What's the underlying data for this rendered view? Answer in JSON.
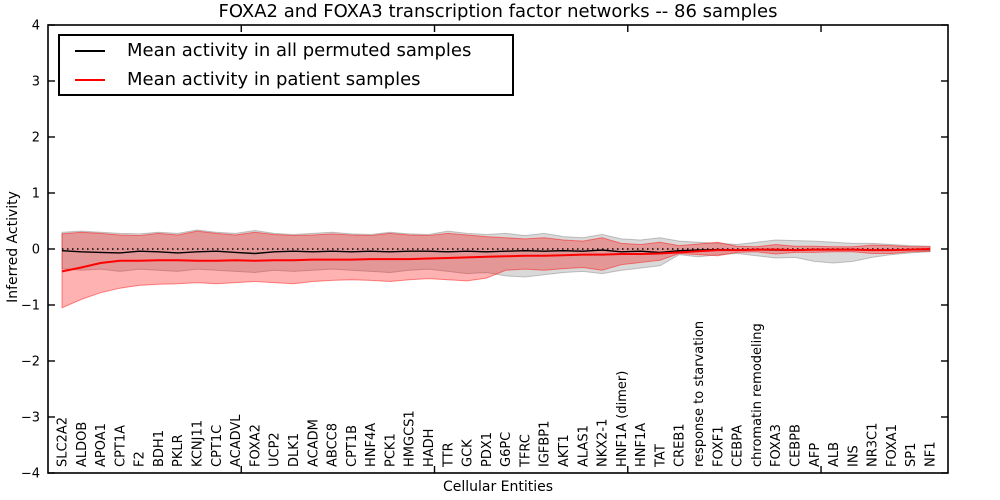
{
  "chart_data": {
    "type": "line",
    "title": "FOXA2 and FOXA3 transcription factor networks -- 86 samples",
    "xlabel": "Cellular Entities",
    "ylabel": "Inferred Activity",
    "ylim": [
      -4,
      4
    ],
    "yticks": [
      -4,
      -3,
      -2,
      -1,
      0,
      1,
      2,
      3,
      4
    ],
    "ytick_labels": [
      "−4",
      "−3",
      "−2",
      "−1",
      "0",
      "1",
      "2",
      "3",
      "4"
    ],
    "grid": false,
    "legend_position": "upper-left",
    "legend": [
      {
        "label": "Mean activity in all permuted samples",
        "color": "#000000"
      },
      {
        "label": "Mean activity in patient samples",
        "color": "#ff0000"
      }
    ],
    "categories": [
      "SLC2A2",
      "ALDOB",
      "APOA1",
      "CPT1A",
      "F2",
      "BDH1",
      "PKLR",
      "KCNJ11",
      "CPT1C",
      "ACADVL",
      "FOXA2",
      "UCP2",
      "DLK1",
      "ACADM",
      "ABCC8",
      "CPT1B",
      "HNF4A",
      "PCK1",
      "HMGCS1",
      "HADH",
      "TTR",
      "GCK",
      "PDX1",
      "G6PC",
      "TFRC",
      "IGFBP1",
      "AKT1",
      "ALAS1",
      "NKX2-1",
      "HNF1A (dimer)",
      "HNF1A",
      "TAT",
      "CREB1",
      "response to starvation",
      "FOXF1",
      "CEBPA",
      "chromatin remodeling",
      "FOXA3",
      "CEBPB",
      "AFP",
      "ALB",
      "INS",
      "NR3C1",
      "FOXA1",
      "SP1",
      "NF1"
    ],
    "series": [
      {
        "name": "Mean activity in all permuted samples",
        "color": "#000000",
        "line_width": 1.4,
        "values": [
          -0.03,
          -0.05,
          -0.06,
          -0.07,
          -0.04,
          -0.05,
          -0.07,
          -0.05,
          -0.04,
          -0.06,
          -0.08,
          -0.05,
          -0.04,
          -0.05,
          -0.04,
          -0.05,
          -0.04,
          -0.05,
          -0.04,
          -0.04,
          -0.05,
          -0.04,
          -0.05,
          -0.04,
          -0.03,
          -0.04,
          -0.03,
          -0.04,
          -0.02,
          -0.05,
          -0.04,
          -0.06,
          -0.03,
          -0.02,
          -0.01,
          -0.02,
          -0.01,
          -0.02,
          -0.02,
          -0.01,
          -0.01,
          -0.01,
          -0.02,
          -0.02,
          -0.01,
          -0.01
        ]
      },
      {
        "name": "Mean activity in patient samples",
        "color": "#ff0000",
        "line_width": 2,
        "values": [
          -0.4,
          -0.33,
          -0.25,
          -0.21,
          -0.21,
          -0.2,
          -0.2,
          -0.21,
          -0.21,
          -0.2,
          -0.21,
          -0.2,
          -0.2,
          -0.19,
          -0.19,
          -0.19,
          -0.18,
          -0.18,
          -0.18,
          -0.17,
          -0.16,
          -0.15,
          -0.14,
          -0.13,
          -0.12,
          -0.12,
          -0.11,
          -0.1,
          -0.1,
          -0.09,
          -0.09,
          -0.08,
          -0.06,
          -0.04,
          -0.02,
          -0.02,
          -0.01,
          -0.01,
          -0.02,
          -0.01,
          -0.01,
          -0.01,
          -0.02,
          -0.02,
          -0.01,
          0.0
        ]
      },
      {
        "name": "zero reference",
        "color": "#000000",
        "style": "dotted",
        "line_width": 1.6,
        "value": 0
      }
    ],
    "bands": [
      {
        "name": "permuted-samples-range",
        "color": "#808080",
        "opacity": 0.3,
        "upper": [
          0.3,
          0.32,
          0.3,
          0.28,
          0.27,
          0.3,
          0.28,
          0.34,
          0.3,
          0.28,
          0.33,
          0.28,
          0.26,
          0.28,
          0.3,
          0.27,
          0.26,
          0.3,
          0.27,
          0.26,
          0.32,
          0.28,
          0.26,
          0.28,
          0.24,
          0.28,
          0.22,
          0.2,
          0.26,
          0.18,
          0.16,
          0.2,
          0.14,
          0.12,
          0.1,
          0.08,
          0.12,
          0.16,
          0.15,
          0.14,
          0.12,
          0.1,
          0.1,
          0.08,
          0.06,
          0.05
        ],
        "lower": [
          -0.35,
          -0.38,
          -0.36,
          -0.4,
          -0.36,
          -0.38,
          -0.4,
          -0.36,
          -0.38,
          -0.4,
          -0.42,
          -0.38,
          -0.4,
          -0.38,
          -0.36,
          -0.38,
          -0.4,
          -0.42,
          -0.38,
          -0.36,
          -0.4,
          -0.44,
          -0.42,
          -0.48,
          -0.5,
          -0.46,
          -0.42,
          -0.4,
          -0.44,
          -0.38,
          -0.34,
          -0.3,
          -0.1,
          -0.14,
          -0.1,
          -0.08,
          -0.12,
          -0.16,
          -0.15,
          -0.22,
          -0.25,
          -0.22,
          -0.15,
          -0.1,
          -0.07,
          -0.05
        ]
      },
      {
        "name": "patient-samples-range",
        "color": "#ff0000",
        "opacity": 0.3,
        "upper": [
          0.27,
          0.3,
          0.28,
          0.25,
          0.24,
          0.28,
          0.25,
          0.32,
          0.28,
          0.25,
          0.3,
          0.26,
          0.24,
          0.25,
          0.27,
          0.25,
          0.24,
          0.28,
          0.25,
          0.24,
          0.28,
          0.25,
          0.22,
          0.2,
          0.18,
          0.2,
          0.16,
          0.14,
          0.2,
          0.1,
          0.08,
          0.12,
          0.06,
          0.09,
          0.12,
          0.05,
          0.04,
          0.08,
          0.05,
          0.05,
          0.04,
          0.04,
          0.07,
          0.06,
          0.04,
          0.04
        ],
        "lower": [
          -1.05,
          -0.9,
          -0.78,
          -0.7,
          -0.65,
          -0.63,
          -0.62,
          -0.6,
          -0.62,
          -0.6,
          -0.58,
          -0.6,
          -0.62,
          -0.58,
          -0.56,
          -0.55,
          -0.56,
          -0.58,
          -0.55,
          -0.53,
          -0.55,
          -0.57,
          -0.52,
          -0.38,
          -0.36,
          -0.38,
          -0.35,
          -0.33,
          -0.38,
          -0.28,
          -0.24,
          -0.2,
          -0.08,
          -0.1,
          -0.12,
          -0.06,
          -0.05,
          -0.09,
          -0.06,
          -0.06,
          -0.05,
          -0.05,
          -0.08,
          -0.08,
          -0.05,
          -0.04
        ]
      }
    ]
  }
}
